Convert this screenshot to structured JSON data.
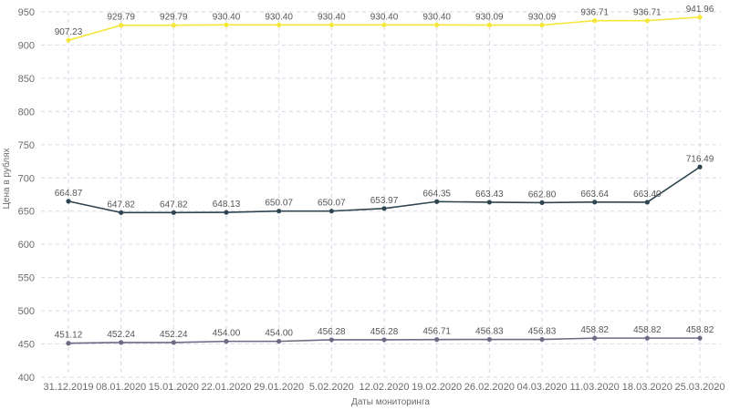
{
  "chart_data": {
    "type": "line",
    "title": "",
    "xlabel": "Даты мониторинга",
    "ylabel": "Цена в рублях",
    "ylim": [
      400,
      950
    ],
    "yticks": [
      400,
      450,
      500,
      550,
      600,
      650,
      700,
      750,
      800,
      850,
      900,
      950
    ],
    "grid": true,
    "legend": "none",
    "categories": [
      "31.12.2019",
      "08.01.2020",
      "15.01.2020",
      "22.01.2020",
      "29.01.2020",
      "5.02.2020",
      "12.02.2020",
      "19.02.2020",
      "26.02.2020",
      "04.03.2020",
      "11.03.2020",
      "18.03.2020",
      "25.03.2020"
    ],
    "series": [
      {
        "color": "#f5e63a",
        "values": [
          907.23,
          929.79,
          929.79,
          930.4,
          930.4,
          930.4,
          930.4,
          930.4,
          930.09,
          930.09,
          936.71,
          936.71,
          941.96
        ],
        "labels": [
          "907.23",
          "929.79",
          "929.79",
          "930.40",
          "930.40",
          "930.40",
          "930.40",
          "930.40",
          "930.09",
          "930.09",
          "936.71",
          "936.71",
          "941.96"
        ]
      },
      {
        "color": "#2f4652",
        "values": [
          664.87,
          647.82,
          647.82,
          648.13,
          650.07,
          650.07,
          653.97,
          664.35,
          663.43,
          662.8,
          663.64,
          663.4,
          716.49
        ],
        "labels": [
          "664.87",
          "647.82",
          "647.82",
          "648.13",
          "650.07",
          "650.07",
          "653.97",
          "664.35",
          "663.43",
          "662.80",
          "663.64",
          "663.40",
          "716.49"
        ]
      },
      {
        "color": "#6e6a85",
        "values": [
          451.12,
          452.24,
          452.24,
          454.0,
          454.0,
          456.28,
          456.28,
          456.71,
          456.83,
          456.83,
          458.82,
          458.82,
          458.82
        ],
        "labels": [
          "451.12",
          "452.24",
          "452.24",
          "454.00",
          "454.00",
          "456.28",
          "456.28",
          "456.71",
          "456.83",
          "456.83",
          "458.82",
          "458.82",
          "458.82"
        ]
      }
    ]
  }
}
